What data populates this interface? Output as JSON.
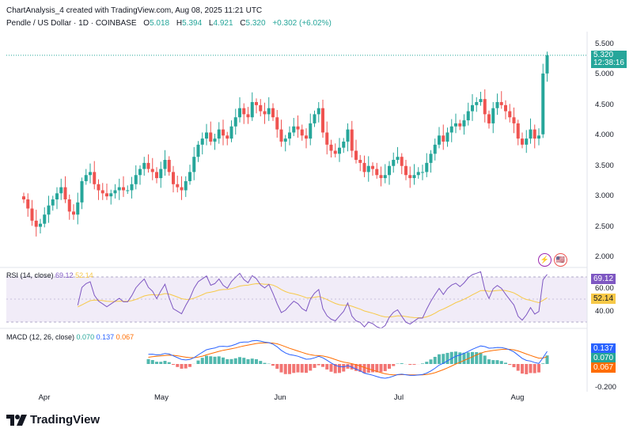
{
  "attribution": "ChartAnalysis_4 created with TradingView.com, Aug 08, 2025 11:21 UTC",
  "legend": {
    "symbol": "Pendle / US Dollar · 1D · COINBASE",
    "o_label": "O",
    "o": "5.018",
    "h_label": "H",
    "h": "5.394",
    "l_label": "L",
    "l": "4.921",
    "c_label": "C",
    "c": "5.320",
    "change": "+0.302 (+6.02%)"
  },
  "price_axis": [
    "5.500",
    "5.000",
    "4.500",
    "4.000",
    "3.500",
    "3.000",
    "2.500",
    "2.000"
  ],
  "price_tag": {
    "price": "5.320",
    "countdown": "12:38:16"
  },
  "rsi": {
    "label": "RSI (14, close)",
    "value": "69.12",
    "ma_value": "52.14",
    "axis": [
      "60.00",
      "40.00"
    ],
    "tag": "69.12",
    "ma_tag": "52.14"
  },
  "macd": {
    "label": "MACD (12, 26, close)",
    "hist": "0.070",
    "macd": "0.137",
    "signal": "0.067",
    "axis": [
      "-0.200"
    ],
    "tags": [
      "0.137",
      "0.070",
      "0.067"
    ]
  },
  "months": [
    "Apr",
    "May",
    "Jun",
    "Jul",
    "Aug"
  ],
  "logo_text": "TradingView",
  "icons": [
    "lightning-icon",
    "us-flag-icon"
  ],
  "colors": {
    "up": "#26a69a",
    "down": "#ef5350",
    "rsi": "#7e57c2",
    "rsi_ma": "#f7c948",
    "macd": "#2962ff",
    "signal": "#ff6d00",
    "price_line": "#26a69a"
  },
  "chart_data": {
    "type": "candlestick",
    "title": "Pendle / US Dollar · 1D · COINBASE",
    "xlabel": "",
    "ylabel": "",
    "ylim": [
      1.9,
      5.6
    ],
    "last_close": 5.32,
    "closes": [
      2.95,
      2.8,
      2.6,
      2.5,
      2.55,
      2.7,
      2.85,
      2.95,
      3.05,
      3.15,
      2.95,
      2.75,
      2.7,
      2.9,
      3.25,
      3.35,
      3.4,
      3.2,
      3.1,
      3.05,
      3.0,
      3.05,
      3.1,
      3.15,
      3.1,
      3.1,
      3.2,
      3.35,
      3.45,
      3.55,
      3.45,
      3.4,
      3.3,
      3.45,
      3.6,
      3.4,
      3.2,
      3.15,
      3.1,
      3.25,
      3.4,
      3.65,
      3.85,
      3.95,
      4.05,
      3.9,
      3.95,
      4.1,
      4.0,
      3.95,
      4.15,
      4.3,
      4.45,
      4.35,
      4.3,
      4.55,
      4.5,
      4.4,
      4.35,
      4.45,
      4.3,
      4.1,
      3.9,
      3.95,
      4.05,
      4.15,
      4.1,
      4.0,
      3.95,
      4.2,
      4.35,
      4.45,
      4.05,
      3.85,
      3.75,
      3.7,
      3.8,
      3.9,
      4.1,
      3.75,
      3.6,
      3.55,
      3.4,
      3.5,
      3.45,
      3.35,
      3.3,
      3.35,
      3.5,
      3.6,
      3.65,
      3.5,
      3.35,
      3.3,
      3.35,
      3.4,
      3.4,
      3.55,
      3.7,
      3.85,
      4.0,
      3.9,
      4.05,
      4.15,
      4.2,
      4.15,
      4.25,
      4.4,
      4.5,
      4.55,
      4.6,
      4.35,
      4.2,
      4.45,
      4.55,
      4.5,
      4.4,
      4.3,
      4.2,
      3.95,
      3.85,
      3.95,
      4.1,
      3.95,
      4.0,
      5.02,
      5.32
    ]
  }
}
